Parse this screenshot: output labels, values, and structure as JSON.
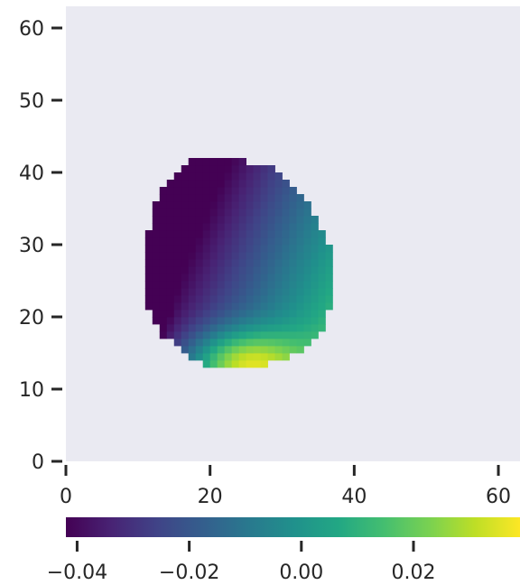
{
  "chart_data": {
    "type": "heatmap",
    "title": "",
    "xlabel": "",
    "ylabel": "",
    "xlim": [
      0,
      63
    ],
    "ylim": [
      0,
      63
    ],
    "x_ticks": [
      0,
      20,
      40,
      60
    ],
    "y_ticks": [
      0,
      10,
      20,
      30,
      40,
      50,
      60
    ],
    "x_tick_labels": [
      "0",
      "20",
      "40",
      "60"
    ],
    "y_tick_labels": [
      "0",
      "10",
      "20",
      "30",
      "40",
      "50",
      "60"
    ],
    "background_color": "#eaeaf2",
    "colormap": "viridis",
    "value_range": [
      -0.042,
      0.039
    ],
    "colorbar": {
      "orientation": "horizontal",
      "placement": "bottom",
      "ticks": [
        -0.04,
        -0.02,
        0.0,
        0.02
      ],
      "tick_labels": [
        "−0.04",
        "−0.02",
        "0.00",
        "0.02"
      ]
    },
    "grid": false,
    "region": {
      "description_rows": "for each integer y, the x-range [x_start, x_end] of filled cells",
      "rows": [
        {
          "y": 13,
          "x": [
            19,
            27
          ]
        },
        {
          "y": 14,
          "x": [
            17,
            30
          ]
        },
        {
          "y": 15,
          "x": [
            16,
            32
          ]
        },
        {
          "y": 16,
          "x": [
            15,
            33
          ]
        },
        {
          "y": 17,
          "x": [
            13,
            34
          ]
        },
        {
          "y": 18,
          "x": [
            13,
            35
          ]
        },
        {
          "y": 19,
          "x": [
            12,
            35
          ]
        },
        {
          "y": 20,
          "x": [
            12,
            35
          ]
        },
        {
          "y": 21,
          "x": [
            11,
            36
          ]
        },
        {
          "y": 22,
          "x": [
            11,
            36
          ]
        },
        {
          "y": 23,
          "x": [
            11,
            36
          ]
        },
        {
          "y": 24,
          "x": [
            11,
            36
          ]
        },
        {
          "y": 25,
          "x": [
            11,
            36
          ]
        },
        {
          "y": 26,
          "x": [
            11,
            36
          ]
        },
        {
          "y": 27,
          "x": [
            11,
            36
          ]
        },
        {
          "y": 28,
          "x": [
            11,
            36
          ]
        },
        {
          "y": 29,
          "x": [
            11,
            36
          ]
        },
        {
          "y": 30,
          "x": [
            11,
            35
          ]
        },
        {
          "y": 31,
          "x": [
            11,
            35
          ]
        },
        {
          "y": 32,
          "x": [
            12,
            34
          ]
        },
        {
          "y": 33,
          "x": [
            12,
            34
          ]
        },
        {
          "y": 34,
          "x": [
            12,
            33
          ]
        },
        {
          "y": 35,
          "x": [
            12,
            33
          ]
        },
        {
          "y": 36,
          "x": [
            13,
            32
          ]
        },
        {
          "y": 37,
          "x": [
            13,
            31
          ]
        },
        {
          "y": 38,
          "x": [
            14,
            30
          ]
        },
        {
          "y": 39,
          "x": [
            15,
            29
          ]
        },
        {
          "y": 40,
          "x": [
            16,
            28
          ]
        },
        {
          "y": 41,
          "x": [
            17,
            24
          ]
        }
      ]
    },
    "field_model": {
      "type": "linear_plus_hotspot",
      "min_at": {
        "x": 11,
        "y": 27
      },
      "max_at": {
        "x": 24,
        "y": 13
      },
      "min_value": -0.042,
      "max_value": 0.039
    }
  }
}
